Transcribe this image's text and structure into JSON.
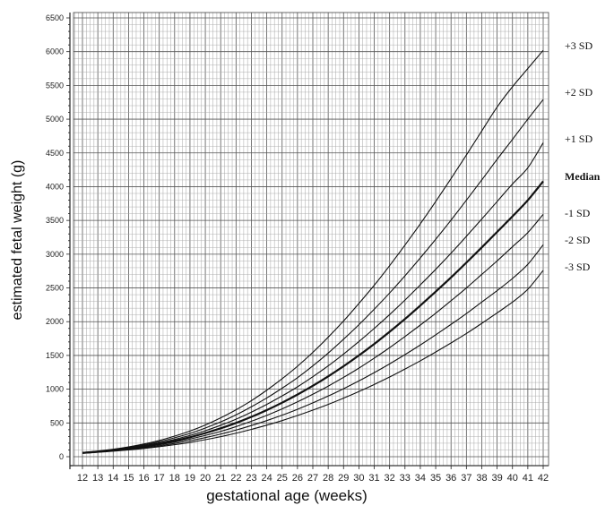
{
  "chart_data": {
    "type": "line",
    "title": "",
    "xlabel": "gestational age (weeks)",
    "ylabel": "estimated fetal weight (g)",
    "xlim": [
      12,
      42
    ],
    "ylim": [
      0,
      6500
    ],
    "x": [
      12,
      13,
      14,
      15,
      16,
      17,
      18,
      19,
      20,
      21,
      22,
      23,
      24,
      25,
      26,
      27,
      28,
      29,
      30,
      31,
      32,
      33,
      34,
      35,
      36,
      37,
      38,
      39,
      40,
      41,
      42
    ],
    "x_ticks": [
      "12",
      "13",
      "14",
      "15",
      "16",
      "17",
      "18",
      "19",
      "20",
      "21",
      "22",
      "23",
      "24",
      "25",
      "26",
      "27",
      "28",
      "29",
      "30",
      "31",
      "32",
      "33",
      "34",
      "35",
      "36",
      "37",
      "38",
      "39",
      "40",
      "41",
      "42"
    ],
    "y_ticks": [
      "0",
      "500",
      "1000",
      "1500",
      "2000",
      "2500",
      "3000",
      "3500",
      "4000",
      "4500",
      "5000",
      "5500",
      "6000",
      "6500"
    ],
    "grid": true,
    "legend": "right-of-plot labels",
    "series": [
      {
        "name": "+3 SD",
        "values": [
          62,
          84,
          110,
          145,
          188,
          240,
          305,
          380,
          470,
          575,
          695,
          830,
          985,
          1155,
          1340,
          1545,
          1770,
          2010,
          2270,
          2540,
          2830,
          3135,
          3450,
          3780,
          4120,
          4470,
          4825,
          5180,
          5480,
          5750,
          6020
        ]
      },
      {
        "name": "+2 SD",
        "values": [
          60,
          80,
          105,
          137,
          176,
          222,
          280,
          345,
          425,
          515,
          620,
          740,
          870,
          1015,
          1170,
          1345,
          1535,
          1740,
          1955,
          2185,
          2425,
          2680,
          2945,
          3220,
          3505,
          3800,
          4100,
          4405,
          4700,
          5000,
          5290
        ]
      },
      {
        "name": "+1 SD",
        "values": [
          58,
          77,
          100,
          129,
          164,
          206,
          257,
          315,
          385,
          465,
          555,
          660,
          775,
          900,
          1035,
          1185,
          1345,
          1520,
          1705,
          1900,
          2105,
          2320,
          2545,
          2775,
          3015,
          3265,
          3520,
          3780,
          4040,
          4280,
          4650
        ]
      },
      {
        "name": "Median",
        "values": [
          56,
          74,
          95,
          121,
          153,
          191,
          236,
          288,
          350,
          420,
          500,
          590,
          690,
          800,
          920,
          1050,
          1190,
          1340,
          1500,
          1670,
          1850,
          2040,
          2240,
          2445,
          2655,
          2875,
          3100,
          3330,
          3560,
          3800,
          4080
        ]
      },
      {
        "name": "-1 SD",
        "values": [
          54,
          71,
          90,
          114,
          142,
          176,
          216,
          262,
          315,
          375,
          445,
          525,
          612,
          708,
          812,
          925,
          1045,
          1175,
          1312,
          1460,
          1615,
          1780,
          1950,
          2125,
          2310,
          2500,
          2700,
          2900,
          3110,
          3320,
          3590
        ]
      },
      {
        "name": "-2 SD",
        "values": [
          52,
          68,
          86,
          107,
          132,
          162,
          197,
          237,
          283,
          335,
          395,
          462,
          535,
          615,
          702,
          797,
          898,
          1007,
          1122,
          1245,
          1375,
          1512,
          1655,
          1805,
          1960,
          2120,
          2290,
          2460,
          2640,
          2850,
          3140
        ]
      },
      {
        "name": "-3 SD",
        "values": [
          50,
          65,
          82,
          100,
          122,
          148,
          178,
          212,
          252,
          297,
          348,
          405,
          467,
          535,
          610,
          690,
          775,
          867,
          965,
          1070,
          1180,
          1298,
          1420,
          1550,
          1685,
          1825,
          1975,
          2130,
          2290,
          2480,
          2760
        ]
      }
    ]
  }
}
